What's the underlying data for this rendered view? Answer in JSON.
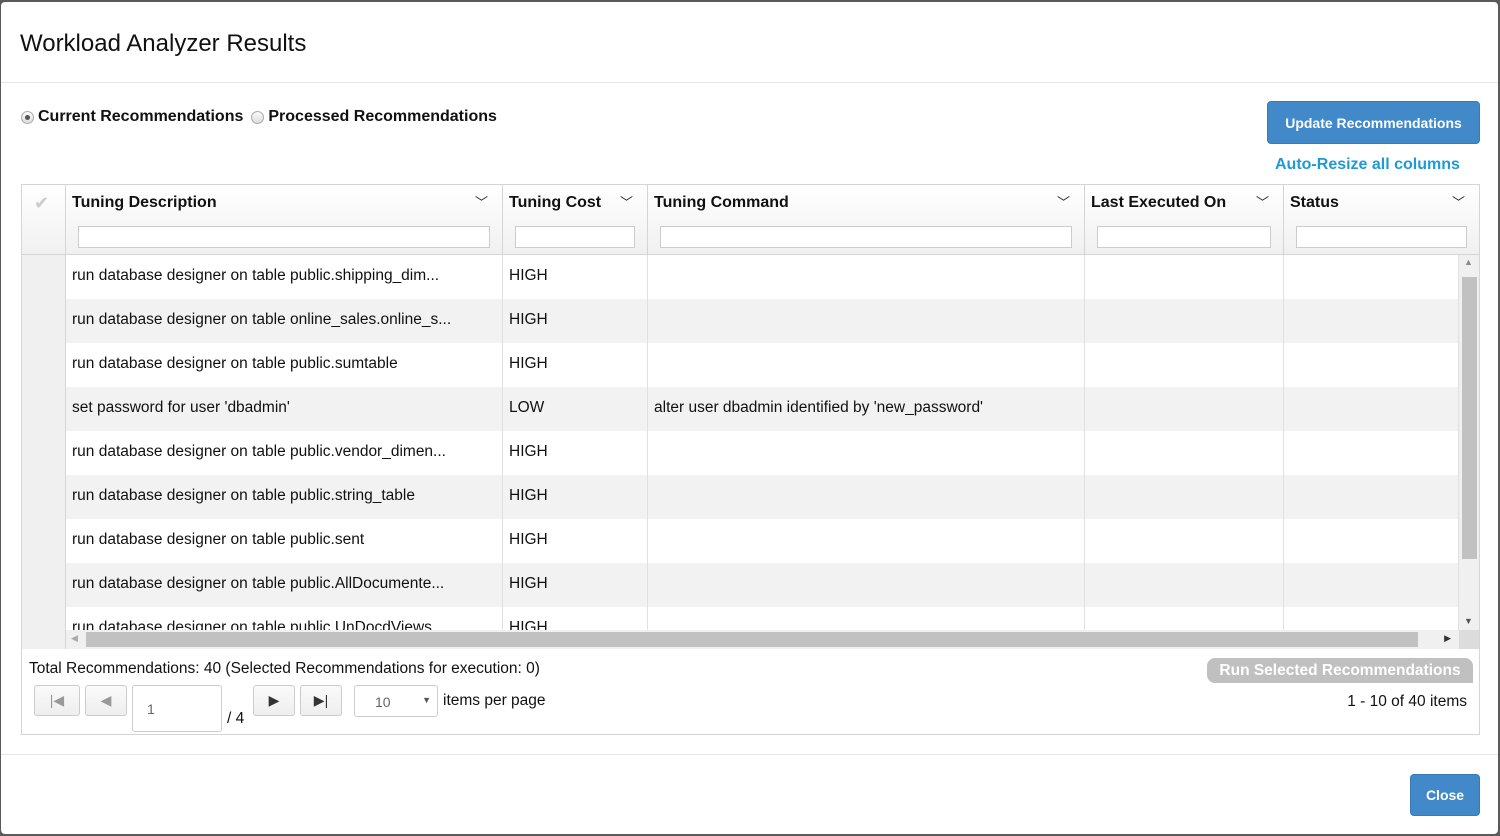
{
  "dialog": {
    "title": "Workload Analyzer Results"
  },
  "view": {
    "options": [
      {
        "label": "Current Recommendations",
        "selected": true
      },
      {
        "label": "Processed Recommendations",
        "selected": false
      }
    ]
  },
  "actions": {
    "update": "Update Recommendations",
    "auto_resize": "Auto-Resize all columns",
    "run_selected": "Run Selected Recommendations",
    "close": "Close"
  },
  "grid": {
    "columns": [
      "Tuning Description",
      "Tuning Cost",
      "Tuning Command",
      "Last Executed On",
      "Status"
    ],
    "rows": [
      [
        "run database designer on table public.shipping_dim...",
        "HIGH",
        "",
        "",
        ""
      ],
      [
        "run database designer on table online_sales.online_s...",
        "HIGH",
        "",
        "",
        ""
      ],
      [
        "run database designer on table public.sumtable",
        "HIGH",
        "",
        "",
        ""
      ],
      [
        "set password for user 'dbadmin'",
        "LOW",
        "alter user dbadmin identified by 'new_password'",
        "",
        ""
      ],
      [
        "run database designer on table public.vendor_dimen...",
        "HIGH",
        "",
        "",
        ""
      ],
      [
        "run database designer on table public.string_table",
        "HIGH",
        "",
        "",
        ""
      ],
      [
        "run database designer on table public.sent",
        "HIGH",
        "",
        "",
        ""
      ],
      [
        "run database designer on table public.AllDocumente...",
        "HIGH",
        "",
        "",
        ""
      ],
      [
        "run database designer on table public.UnDocdViews...",
        "HIGH",
        "",
        "",
        ""
      ]
    ]
  },
  "footer": {
    "total": "Total Recommendations: 40 (Selected Recommendations for execution: 0)",
    "page": "1",
    "page_total": "/ 4",
    "page_size": "10",
    "items_per_page": "items per page",
    "range": "1 - 10 of 40 items"
  },
  "colors": {
    "accent": "#4189c8",
    "link": "#1e9ad6",
    "disabled": "#c0c0c0"
  }
}
